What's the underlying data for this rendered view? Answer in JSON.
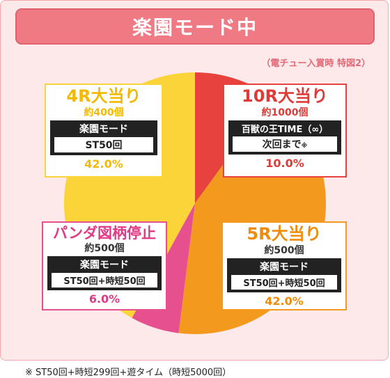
{
  "title": "楽園モード中",
  "subnote": "（電チュー入賞時 特図2）",
  "footer": "※ ST50回+時短299回+遊タイム（時短5000回）",
  "colors": {
    "yellow": "#fbd43a",
    "red": "#e8423e",
    "orange": "#f39a1e",
    "pink": "#e7508f",
    "frame_bg": "#fde8ea",
    "title_bg": "#f07a84"
  },
  "chart_data": {
    "type": "pie",
    "title": "楽園モード中",
    "slices": [
      {
        "label": "10R大当り",
        "value": 10.0,
        "color": "#e8423e"
      },
      {
        "label": "5R大当り",
        "value": 42.0,
        "color": "#f39a1e"
      },
      {
        "label": "パンダ図柄停止",
        "value": 6.0,
        "color": "#e7508f"
      },
      {
        "label": "4R大当り",
        "value": 42.0,
        "color": "#fbd43a"
      }
    ]
  },
  "boxes": {
    "r4": {
      "head": "4R大当り",
      "count": "約400個",
      "mode": "楽園モード",
      "inner": "ST50回",
      "pct": "42.0%"
    },
    "r10": {
      "head": "10R大当り",
      "count": "約1000個",
      "mode": "百獣の王TIME（∞）",
      "inner": "次回まで",
      "inner_mark": "※",
      "pct": "10.0%"
    },
    "panda": {
      "head": "パンダ図柄停止",
      "count": "約500個",
      "mode": "楽園モード",
      "inner": "ST50回+時短50回",
      "pct": "6.0%"
    },
    "r5": {
      "head": "5R大当り",
      "count": "約500個",
      "mode": "楽園モード",
      "inner": "ST50回+時短50回",
      "pct": "42.0%"
    }
  }
}
